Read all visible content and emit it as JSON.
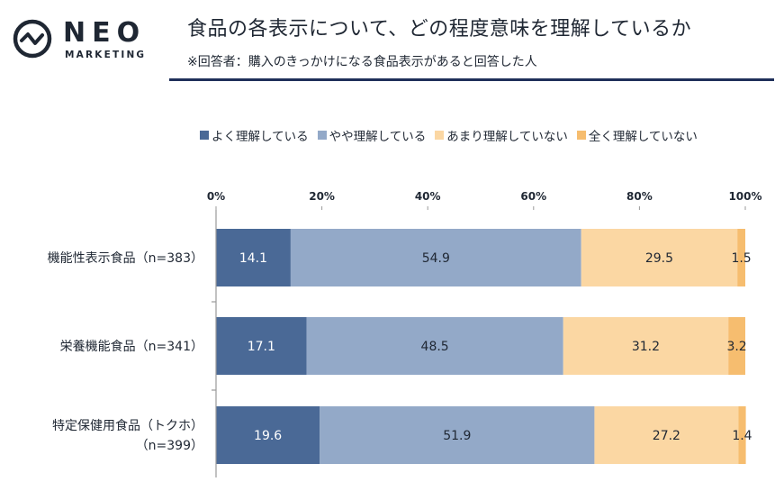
{
  "logo": {
    "name": "NEO",
    "sub": "MARKETING"
  },
  "header": {
    "title": "食品の各表示について、どの程度意味を理解しているか",
    "subtitle": "※回答者：購入のきっかけになる食品表示があると回答した人"
  },
  "colors": {
    "series": [
      "#4a6996",
      "#93a9c8",
      "#fbd7a3",
      "#f6bd6f"
    ],
    "axis": "#9a9a9a",
    "accent": "#1f2f5a"
  },
  "chart_data": {
    "type": "bar",
    "orientation": "horizontal",
    "stacked": true,
    "title": "食品の各表示について、どの程度意味を理解しているか",
    "categories": [
      [
        "機能性表示食品（n=383）"
      ],
      [
        "栄養機能食品（n=341）"
      ],
      [
        "特定保健用食品（トクホ）",
        "（n=399）"
      ]
    ],
    "series": [
      {
        "name": "よく理解している",
        "values": [
          14.1,
          17.1,
          19.6
        ]
      },
      {
        "name": "やや理解している",
        "values": [
          54.9,
          48.5,
          51.9
        ]
      },
      {
        "name": "あまり理解していない",
        "values": [
          29.5,
          31.2,
          27.2
        ]
      },
      {
        "name": "全く理解していない",
        "values": [
          1.5,
          3.2,
          1.4
        ]
      }
    ],
    "xlim": [
      0,
      100
    ],
    "xticks": [
      "0%",
      "20%",
      "40%",
      "60%",
      "80%",
      "100%"
    ],
    "legend_position": "top"
  }
}
